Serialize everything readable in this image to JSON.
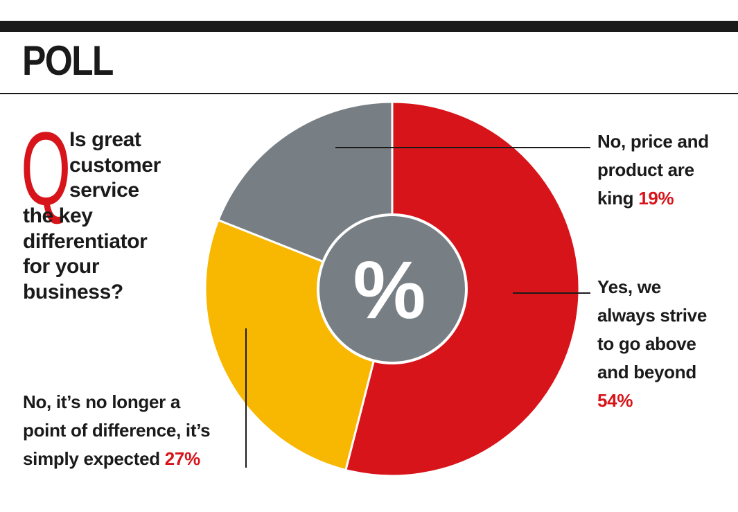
{
  "header": {
    "title": "POLL"
  },
  "question": {
    "letter": "Q",
    "indented_lines": [
      "Is great",
      "customer",
      "service"
    ],
    "full_lines": [
      "the key",
      "differentiator",
      "for your",
      "business?"
    ]
  },
  "center_symbol": "%",
  "chart_data": {
    "type": "pie",
    "style": "donut",
    "slices": [
      {
        "label_lines": [
          "Yes, we",
          "always strive",
          "to go above",
          "and beyond"
        ],
        "value": 54,
        "value_text": "54%",
        "color": "#d7141a"
      },
      {
        "label_lines": [
          "No, it’s no longer a",
          "point of difference, it’s",
          "simply expected"
        ],
        "value": 27,
        "value_text": "27%",
        "color": "#f8b700"
      },
      {
        "label_lines": [
          "No, price and",
          "product are",
          "king"
        ],
        "value": 19,
        "value_text": "19%",
        "color": "#787f84"
      }
    ],
    "center_color": "#787f84",
    "value_color": "#d7141a"
  }
}
